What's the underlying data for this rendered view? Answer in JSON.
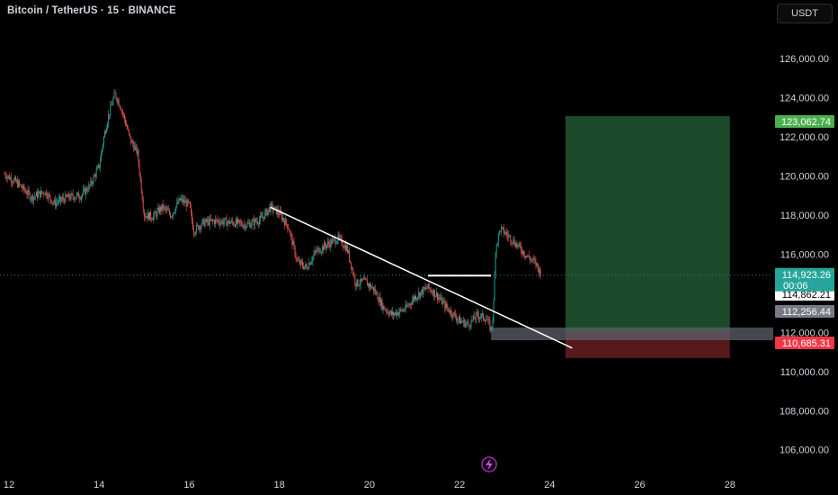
{
  "header": {
    "symbol": "Bitcoin / TetherUS · 15 · BINANCE",
    "currency": "USDT"
  },
  "chart_data": {
    "type": "candlestick",
    "title": "Bitcoin / TetherUS · 15 · BINANCE",
    "xlabel": "",
    "ylabel": "",
    "x_ticks": [
      "12",
      "14",
      "16",
      "18",
      "20",
      "22",
      "24",
      "26",
      "28"
    ],
    "y_ticks": [
      "106,000.00",
      "108,000.00",
      "110,000.00",
      "112,000.00",
      "114,000.00",
      "116,000.00",
      "118,000.00",
      "120,000.00",
      "122,000.00",
      "124,000.00",
      "126,000.00"
    ],
    "xlim": [
      11.8,
      30.4
    ],
    "ylim": [
      104700,
      127700
    ],
    "price_path": [
      [
        11.9,
        120100
      ],
      [
        12.2,
        119600
      ],
      [
        12.5,
        118900
      ],
      [
        12.8,
        119200
      ],
      [
        13.0,
        118600
      ],
      [
        13.3,
        118900
      ],
      [
        13.6,
        119000
      ],
      [
        13.8,
        119500
      ],
      [
        14.0,
        120500
      ],
      [
        14.1,
        121900
      ],
      [
        14.2,
        123000
      ],
      [
        14.35,
        124200
      ],
      [
        14.45,
        123700
      ],
      [
        14.55,
        123000
      ],
      [
        14.7,
        121800
      ],
      [
        14.85,
        121200
      ],
      [
        15.0,
        118000
      ],
      [
        15.2,
        117900
      ],
      [
        15.4,
        118400
      ],
      [
        15.6,
        118000
      ],
      [
        15.8,
        118800
      ],
      [
        16.0,
        118500
      ],
      [
        16.1,
        117200
      ],
      [
        16.3,
        117600
      ],
      [
        16.6,
        117700
      ],
      [
        17.0,
        117600
      ],
      [
        17.3,
        117500
      ],
      [
        17.6,
        117800
      ],
      [
        17.8,
        118400
      ],
      [
        18.0,
        118100
      ],
      [
        18.2,
        117400
      ],
      [
        18.4,
        115600
      ],
      [
        18.6,
        115300
      ],
      [
        18.8,
        116100
      ],
      [
        19.0,
        116400
      ],
      [
        19.3,
        116800
      ],
      [
        19.5,
        116300
      ],
      [
        19.7,
        114500
      ],
      [
        19.9,
        114600
      ],
      [
        20.1,
        114200
      ],
      [
        20.3,
        113300
      ],
      [
        20.5,
        112900
      ],
      [
        20.8,
        113200
      ],
      [
        21.0,
        113800
      ],
      [
        21.3,
        114300
      ],
      [
        21.5,
        113900
      ],
      [
        21.7,
        113300
      ],
      [
        22.0,
        112600
      ],
      [
        22.2,
        112400
      ],
      [
        22.4,
        112900
      ],
      [
        22.6,
        112700
      ],
      [
        22.7,
        112100
      ],
      [
        22.75,
        113000
      ],
      [
        22.8,
        116300
      ],
      [
        22.9,
        117300
      ],
      [
        23.1,
        116900
      ],
      [
        23.3,
        116400
      ],
      [
        23.5,
        115900
      ],
      [
        23.7,
        115500
      ],
      [
        23.8,
        115000
      ]
    ],
    "current_price": {
      "value": 114923.26,
      "label": "114,923.26",
      "countdown": "00:06",
      "color": "#26a69a"
    },
    "price_labels": [
      {
        "label": "123,062.74",
        "value": 123062.74,
        "color": "#4caf50"
      },
      {
        "label": "114,862.21",
        "value": 114862.21,
        "color": "#ffffff"
      },
      {
        "label": "114,862.21",
        "value": 114862.21,
        "color": "#ffffff"
      },
      {
        "label": "112,256.44",
        "value": 112256.44,
        "color": "#787b86"
      },
      {
        "label": "110,685.31",
        "value": 110685.31,
        "color": "#f23645"
      }
    ],
    "drawings": {
      "trendline": {
        "x1": 17.8,
        "y1": 118400,
        "x2": 24.5,
        "y2": 111200,
        "color": "#ffffff"
      },
      "horizontal_ray": {
        "x1": 21.3,
        "x2": 22.7,
        "y": 114900,
        "color": "#ffffff"
      },
      "zone": {
        "x1": 22.7,
        "x2": 30.4,
        "y_top": 112250,
        "y_bottom": 111600,
        "color": "#5d606b"
      },
      "long_position": {
        "x1": 24.35,
        "x2": 28.0,
        "entry": 112000,
        "target": 123062.74,
        "stop": 110685.31,
        "profit_color": "#1e4d2b",
        "loss_color": "#5c1a1e"
      }
    },
    "grid": false,
    "legend": "none"
  }
}
